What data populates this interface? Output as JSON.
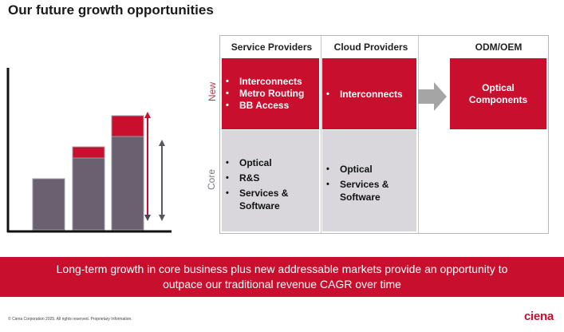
{
  "slide": {
    "title": "Our future growth opportunities"
  },
  "colors": {
    "brand_red": "#c8102e",
    "core_grey": "#d9d7dc",
    "bar_grey": "#6b6070",
    "arrow_grey": "#a5a5a5"
  },
  "matrix": {
    "columns": [
      "Service Providers",
      "Cloud Providers",
      "ODM/OEM"
    ],
    "row_labels": {
      "new": "New",
      "core": "Core"
    },
    "new": {
      "service_providers": [
        "Interconnects",
        "Metro Routing",
        "BB Access"
      ],
      "cloud_providers": [
        "Interconnects"
      ],
      "odm_oem": [
        "Optical",
        "Components"
      ]
    },
    "core": {
      "service_providers": [
        "Optical",
        "R&S",
        "Services &",
        "Software"
      ],
      "cloud_providers": [
        "Optical",
        "Services &",
        "Software"
      ]
    }
  },
  "banner": {
    "line1": "Long-term growth in core business plus new addressable markets provide an opportunity to",
    "line2": "outpace our traditional revenue CAGR over time"
  },
  "footer": {
    "copyright": "© Ciena Corporation 2025. All rights reserved. Proprietary Information.",
    "logo": "ciena"
  }
}
